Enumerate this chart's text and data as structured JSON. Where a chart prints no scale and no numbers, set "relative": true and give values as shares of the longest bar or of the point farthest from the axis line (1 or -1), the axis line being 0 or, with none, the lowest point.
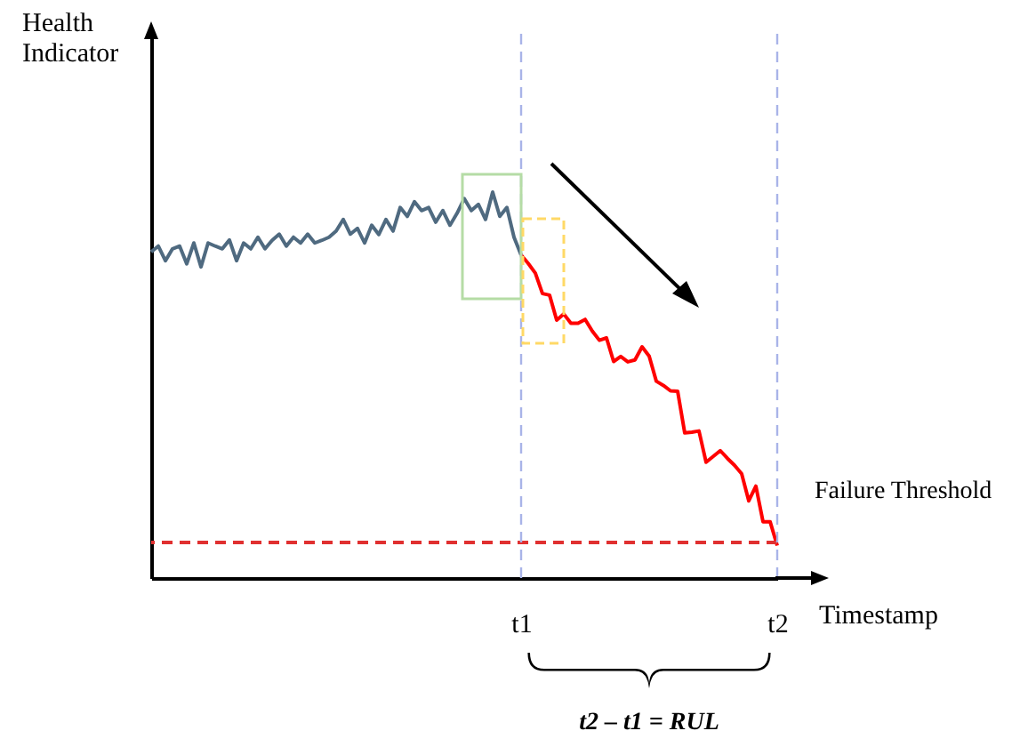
{
  "chart_data": {
    "type": "line",
    "relative": true,
    "xlabel": "Timestamp",
    "ylabel": "Health Indicator",
    "categories": [
      null,
      null,
      null,
      null,
      null,
      null,
      null,
      null,
      null,
      null,
      null,
      null,
      null,
      null,
      null,
      null,
      null,
      null,
      null,
      null,
      null,
      null,
      null,
      null,
      null,
      null,
      null,
      null,
      null,
      null,
      null,
      null,
      null,
      null,
      null,
      null,
      null,
      null,
      null,
      null,
      null,
      null,
      null,
      null,
      null,
      null,
      null,
      null,
      null,
      null,
      null,
      null,
      "t1",
      null,
      null,
      null,
      null,
      null,
      null,
      null,
      null,
      null,
      null,
      null,
      null,
      null,
      null,
      null,
      null,
      null,
      null,
      null,
      null,
      null,
      null,
      null,
      null,
      null,
      null,
      null,
      null,
      null,
      null,
      null,
      null,
      null,
      null,
      null,
      "t2"
    ],
    "series": [
      {
        "color": "#4f6a80",
        "values": [
          0.845,
          0.86,
          0.822,
          0.853,
          0.86,
          0.814,
          0.868,
          0.806,
          0.868,
          0.86,
          0.853,
          0.876,
          0.822,
          0.868,
          0.853,
          0.883,
          0.853,
          0.875,
          0.891,
          0.86,
          0.883,
          0.868,
          0.891,
          0.868,
          0.875,
          0.883,
          0.899,
          0.929,
          0.891,
          0.906,
          0.868,
          0.914,
          0.89,
          0.929,
          0.899,
          0.96,
          0.937,
          0.975,
          0.952,
          0.96,
          0.922,
          0.952,
          0.914,
          0.945,
          0.983,
          0.952,
          0.968,
          0.929,
          1,
          0.937,
          0.96,
          0.883,
          0.837,
          null,
          null,
          null,
          null,
          null,
          null,
          null,
          null,
          null,
          null,
          null,
          null,
          null,
          null,
          null,
          null,
          null,
          null,
          null,
          null,
          null,
          null,
          null,
          null,
          null,
          null,
          null,
          null,
          null,
          null,
          null,
          null,
          null,
          null,
          null,
          null
        ]
      },
      {
        "color": "#ff0000",
        "values": [
          null,
          null,
          null,
          null,
          null,
          null,
          null,
          null,
          null,
          null,
          null,
          null,
          null,
          null,
          null,
          null,
          null,
          null,
          null,
          null,
          null,
          null,
          null,
          null,
          null,
          null,
          null,
          null,
          null,
          null,
          null,
          null,
          null,
          null,
          null,
          null,
          null,
          null,
          null,
          null,
          null,
          null,
          null,
          null,
          null,
          null,
          null,
          null,
          null,
          null,
          null,
          null,
          0.837,
          0.815,
          0.79,
          0.737,
          0.733,
          0.668,
          0.684,
          0.66,
          0.66,
          0.67,
          0.64,
          0.616,
          0.622,
          0.561,
          0.574,
          0.56,
          0.565,
          0.599,
          0.575,
          0.51,
          0.499,
          0.485,
          0.484,
          0.376,
          0.378,
          0.381,
          0.3,
          0.315,
          0.33,
          0.31,
          0.292,
          0.27,
          0.2,
          0.238,
          0.146,
          0.146,
          0.084
        ]
      }
    ],
    "ref_lines": [
      {
        "axis": "y",
        "value": 0.092,
        "label": "Failure Threshold",
        "color": "#e03030",
        "line_style": "dashed"
      },
      {
        "axis": "x",
        "value": "t1",
        "color": "#a9b4e8",
        "line_style": "dashed"
      },
      {
        "axis": "x",
        "value": "t2",
        "color": "#a9b4e8",
        "line_style": "dashed"
      }
    ],
    "annotations": [
      "t2 – t1 = RUL"
    ],
    "marker": "none",
    "line_style": "solid"
  }
}
